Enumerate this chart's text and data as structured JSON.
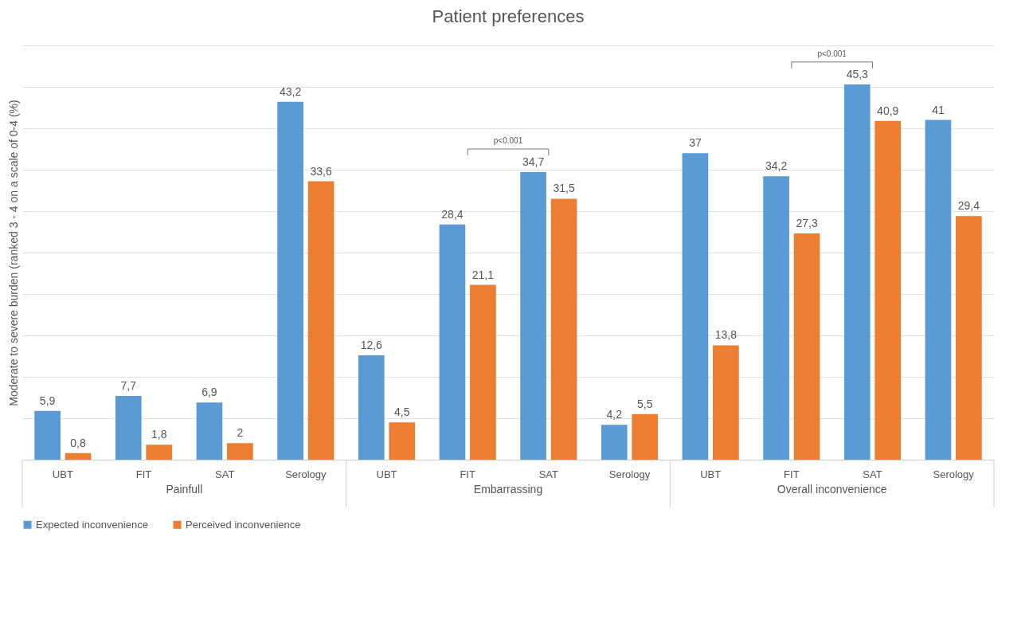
{
  "chart_data": {
    "type": "bar",
    "title": "Patient preferences",
    "ylabel": "Moderate to severe burden (ranked 3 - 4 on a scale of 0-4 (%)",
    "categories": [
      "UBT",
      "FIT",
      "SAT",
      "Serology",
      "UBT",
      "FIT",
      "SAT",
      "Serology",
      "UBT",
      "FIT",
      "SAT",
      "Serology"
    ],
    "series": [
      {
        "name": "Expected inconvenience",
        "color": "#5b9bd5",
        "values": [
          5.9,
          7.7,
          6.9,
          43.2,
          12.6,
          28.4,
          34.7,
          4.2,
          37,
          34.2,
          45.3,
          41
        ],
        "value_labels": [
          "5,9",
          "7,7",
          "6,9",
          "43,2",
          "12,6",
          "28,4",
          "34,7",
          "4,2",
          "37",
          "34,2",
          "45,3",
          "41"
        ]
      },
      {
        "name": "Perceived inconvenience",
        "color": "#ed7d31",
        "values": [
          0.8,
          1.8,
          2,
          33.6,
          4.5,
          21.1,
          31.5,
          5.5,
          13.8,
          27.3,
          40.9,
          29.4
        ],
        "value_labels": [
          "0,8",
          "1,8",
          "2",
          "33,6",
          "4,5",
          "21,1",
          "31,5",
          "5,5",
          "13,8",
          "27,3",
          "40,9",
          "29,4"
        ]
      }
    ],
    "ylim": [
      0,
      50
    ],
    "yticks": [
      {
        "value": 0,
        "label": null
      },
      {
        "value": 5,
        "label": null
      },
      {
        "value": 10,
        "label": null
      },
      {
        "value": 15,
        "label": null
      },
      {
        "value": 20,
        "label": null
      },
      {
        "value": 25,
        "label": null
      },
      {
        "value": 30,
        "label": null
      },
      {
        "value": 35,
        "label": null
      },
      {
        "value": 40,
        "label": null
      },
      {
        "value": 45,
        "label": null
      },
      {
        "value": 50,
        "label": null
      }
    ],
    "tick_labels": "x",
    "grid": "y",
    "legend": "bottom",
    "annotations": [
      "Painfull",
      "Embarrassing",
      "Overall inconvenience",
      "p<0.001",
      "p<0.001"
    ]
  }
}
